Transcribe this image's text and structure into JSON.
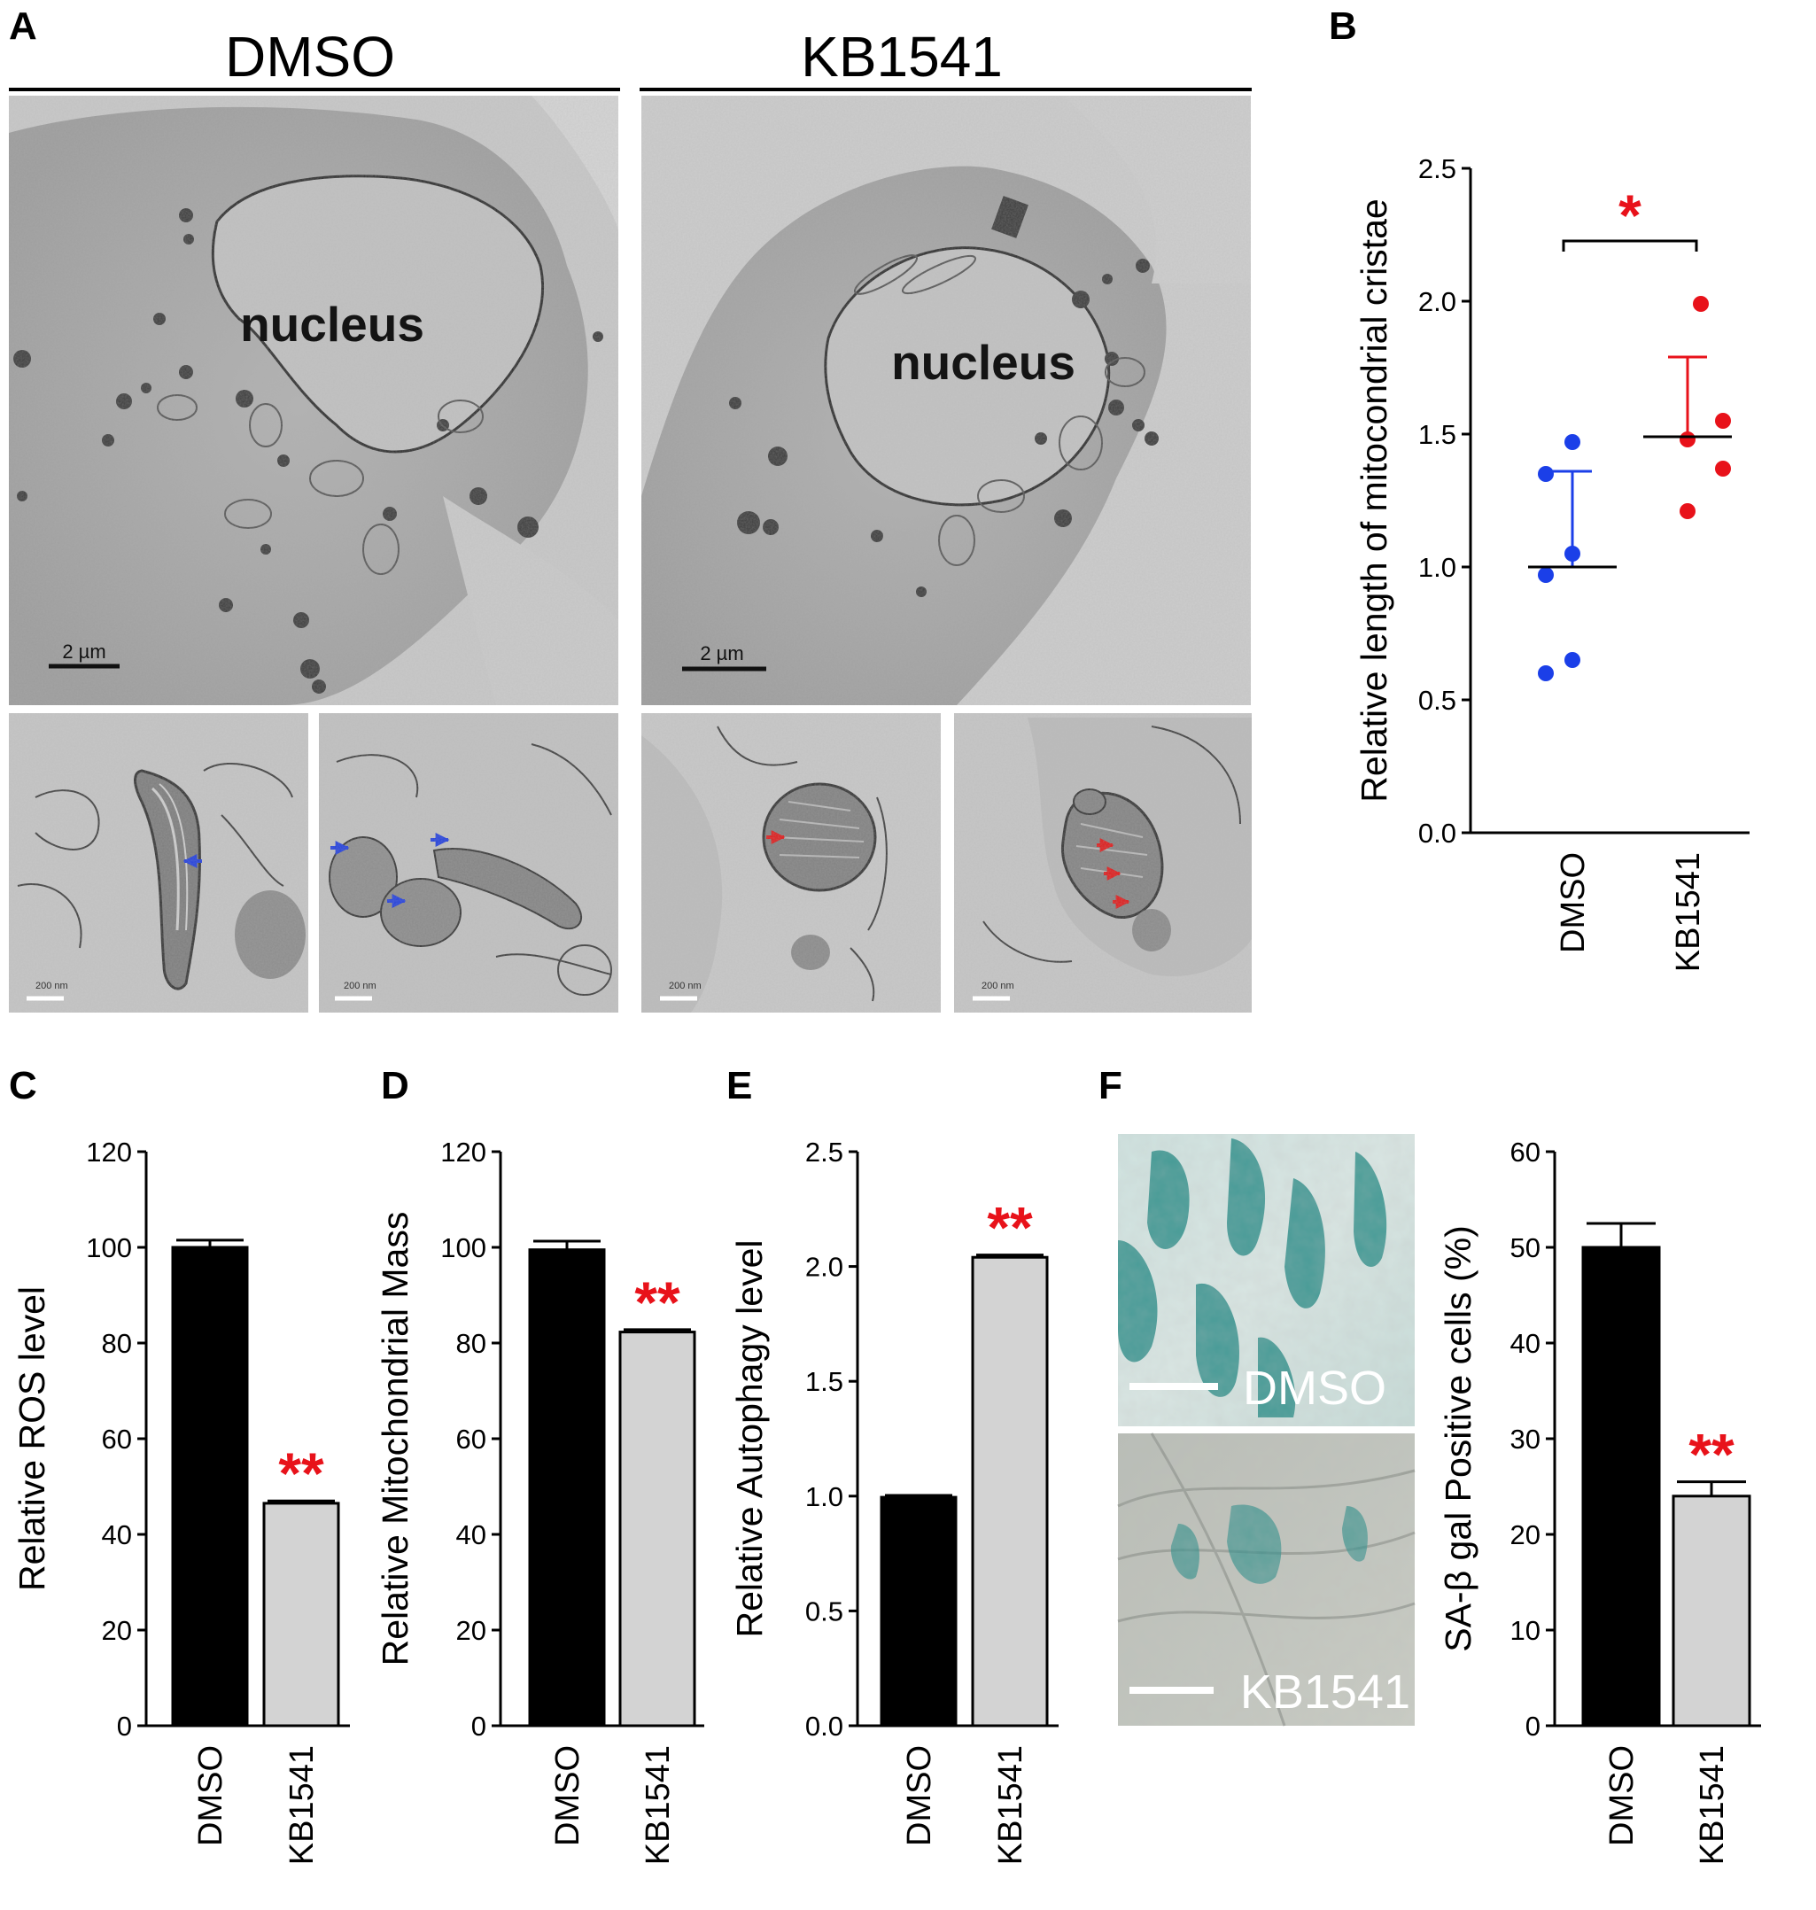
{
  "panel_labels": {
    "a": "A",
    "b": "B",
    "c": "C",
    "d": "D",
    "e": "E",
    "f": "F"
  },
  "panel_a": {
    "conditions": [
      "DMSO",
      "KB1541"
    ],
    "nucleus_label": "nucleus",
    "scale_bar_label": "2  µm",
    "inset_scale_label": "200 nm",
    "arrow_colors": {
      "DMSO": "#1f3de0",
      "KB1541": "#e01818"
    }
  },
  "stain_panel": {
    "labels": [
      "DMSO",
      "KB1541"
    ],
    "stain_color": "#2e8f8a"
  },
  "colors": {
    "dmso": "#000000",
    "kb1541": "#d3d3d3",
    "dmso_points": "#1b3fe8",
    "kb1541_points": "#e8121a",
    "significance": "#e8121a"
  },
  "chart_data": [
    {
      "panel": "B",
      "type": "scatter",
      "categories": [
        "DMSO",
        "KB1541"
      ],
      "ylabel": "Relative length of mitocondrial cristae",
      "ylim": [
        0.0,
        2.5
      ],
      "yticks": [
        "0.0",
        "0.5",
        "1.0",
        "1.5",
        "2.0",
        "2.5"
      ],
      "points": {
        "DMSO": [
          1.47,
          1.35,
          1.05,
          0.97,
          0.65,
          0.6
        ],
        "KB1541": [
          1.99,
          1.55,
          1.48,
          1.37,
          1.21
        ]
      },
      "mean": [
        1.0,
        1.49
      ],
      "error": [
        0.36,
        0.3
      ],
      "significance": "*"
    },
    {
      "panel": "C",
      "type": "bar",
      "categories": [
        "DMSO",
        "KB1541"
      ],
      "values": [
        100,
        46.5
      ],
      "errors": [
        1.5,
        0.5
      ],
      "ylabel": "Relative ROS level",
      "ylim": [
        0,
        120
      ],
      "yticks": [
        "0",
        "20",
        "40",
        "60",
        "80",
        "100",
        "120"
      ],
      "significance": "**"
    },
    {
      "panel": "D",
      "type": "bar",
      "categories": [
        "DMSO",
        "KB1541"
      ],
      "values": [
        99.5,
        82.3
      ],
      "errors": [
        1.8,
        0.5
      ],
      "ylabel": "Relative Mitochondrial Mass",
      "ylim": [
        0,
        120
      ],
      "yticks": [
        "0",
        "20",
        "40",
        "60",
        "80",
        "100",
        "120"
      ],
      "significance": "**"
    },
    {
      "panel": "E",
      "type": "bar",
      "categories": [
        "DMSO",
        "KB1541"
      ],
      "values": [
        0.995,
        2.04
      ],
      "errors": [
        0.008,
        0.01
      ],
      "ylabel": "Relative Autophagy level",
      "ylim": [
        0.0,
        2.5
      ],
      "yticks": [
        "0.0",
        "0.5",
        "1.0",
        "1.5",
        "2.0",
        "2.5"
      ],
      "significance": "**"
    },
    {
      "panel": "F",
      "type": "bar",
      "categories": [
        "DMSO",
        "KB1541"
      ],
      "values": [
        50,
        24
      ],
      "errors": [
        2.5,
        1.5
      ],
      "ylabel": "SA-β gal Positive cells (%)",
      "ylim": [
        0,
        60
      ],
      "yticks": [
        "0",
        "10",
        "20",
        "30",
        "40",
        "50",
        "60"
      ],
      "significance": "**"
    }
  ]
}
